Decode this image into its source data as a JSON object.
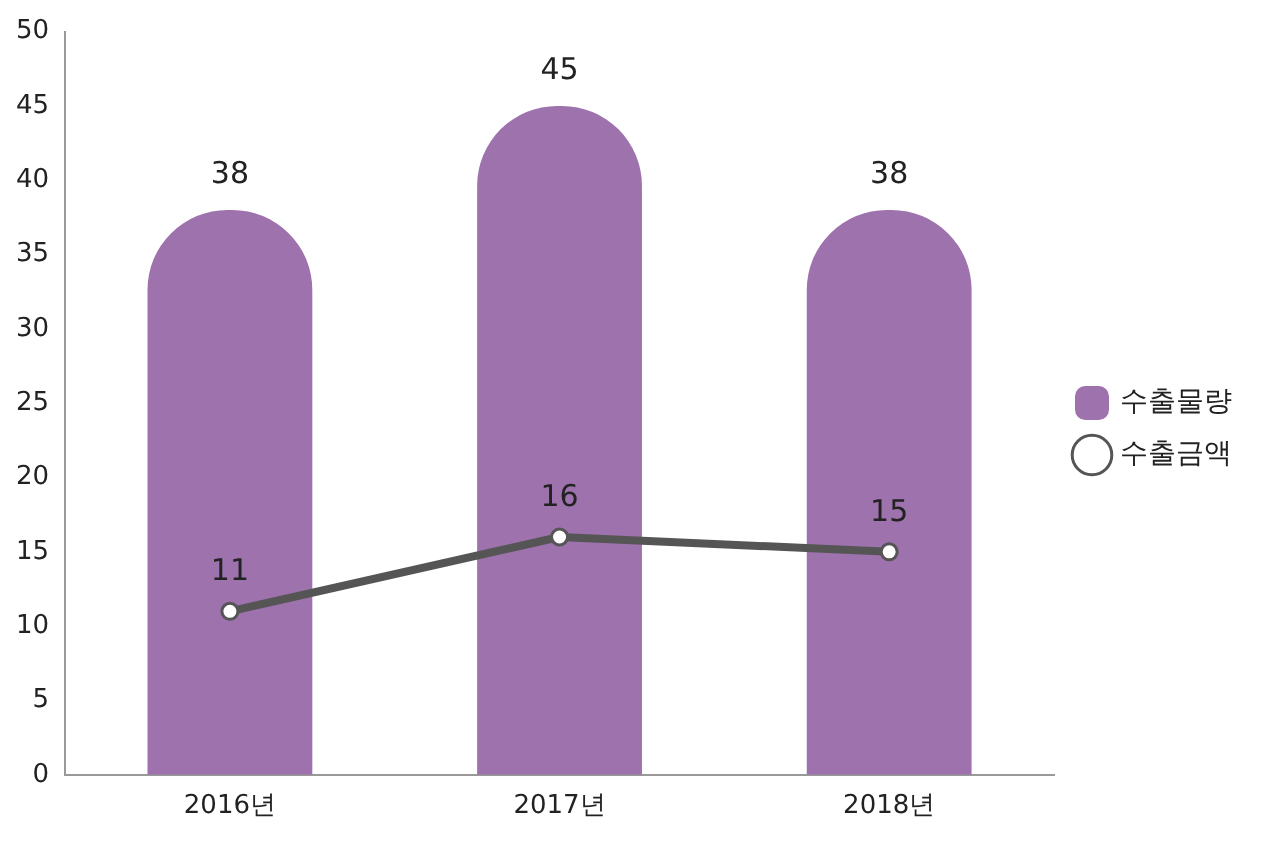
{
  "chart_data": {
    "type": "bar",
    "categories": [
      "2016년",
      "2017년",
      "2018년"
    ],
    "series": [
      {
        "name": "수출물량",
        "color": "#9e72ad",
        "values": [
          38,
          45,
          38
        ]
      },
      {
        "name": "수출금액",
        "type": "line",
        "color": "#555555",
        "values": [
          11,
          16,
          15
        ]
      }
    ],
    "ylim": [
      0,
      50
    ],
    "yticks": [
      0,
      5,
      10,
      15,
      20,
      25,
      30,
      35,
      40,
      45,
      50
    ],
    "data_labels": true,
    "legend": "right",
    "marker": "circle",
    "grid": false
  }
}
